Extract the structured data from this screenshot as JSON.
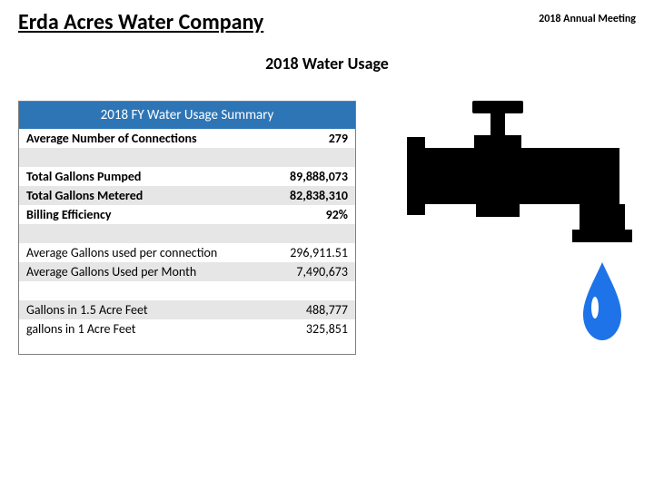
{
  "header": {
    "company": "Erda Acres Water Company",
    "meeting": "2018 Annual Meeting"
  },
  "subtitle": "2018 Water Usage",
  "table": {
    "title": "2018 FY Water Usage Summary",
    "title_bg": "#2e75b6",
    "border_color": "#808080",
    "row_grey": "#e6e6e6",
    "row_white": "#ffffff",
    "rows": [
      {
        "label": "Average Number of Connections",
        "value": "279",
        "bold": true,
        "bg": "white"
      },
      {
        "label": "",
        "value": "",
        "bold": false,
        "bg": "grey"
      },
      {
        "label": "Total Gallons Pumped",
        "value": "89,888,073",
        "bold": true,
        "bg": "white"
      },
      {
        "label": "Total Gallons Metered",
        "value": "82,838,310",
        "bold": true,
        "bg": "grey"
      },
      {
        "label": "Billing Efficiency",
        "value": "92%",
        "bold": true,
        "bg": "white"
      },
      {
        "label": "",
        "value": "",
        "bold": false,
        "bg": "grey"
      },
      {
        "label": "Average Gallons used per connection",
        "value": "296,911.51",
        "bold": false,
        "bg": "white"
      },
      {
        "label": "Average Gallons Used per Month",
        "value": "7,490,673",
        "bold": false,
        "bg": "grey"
      },
      {
        "label": "",
        "value": "",
        "bold": false,
        "bg": "white"
      },
      {
        "label": "Gallons in 1.5 Acre Feet",
        "value": "488,777",
        "bold": false,
        "bg": "grey"
      },
      {
        "label": "gallons in 1 Acre Feet",
        "value": "325,851",
        "bold": false,
        "bg": "white"
      }
    ]
  },
  "faucet": {
    "body_color": "#000000",
    "drop_color": "#1e73e8",
    "drop_highlight": "#ffffff"
  }
}
